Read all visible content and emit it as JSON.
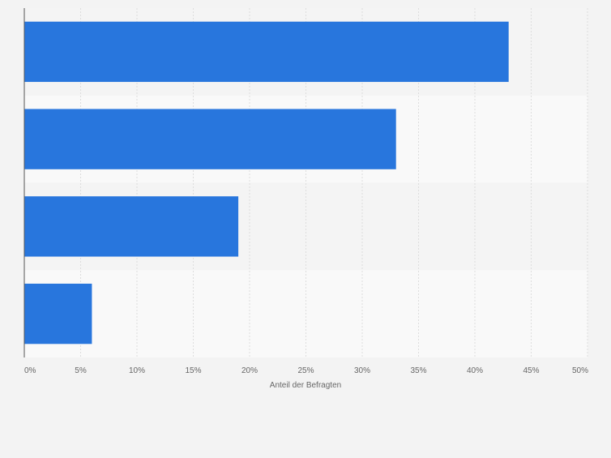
{
  "chart_data": {
    "type": "bar",
    "orientation": "horizontal",
    "categories": [
      "",
      "",
      "",
      ""
    ],
    "values": [
      43,
      33,
      19,
      6
    ],
    "xlabel": "Anteil der Befragten",
    "xlim": [
      0,
      50
    ],
    "x_ticks": [
      "0%",
      "5%",
      "10%",
      "15%",
      "20%",
      "25%",
      "30%",
      "35%",
      "40%",
      "45%",
      "50%"
    ],
    "grid": "vertical",
    "bar_color": "#2876dd",
    "band_colors": [
      "#f4f4f4",
      "#f9f9f9"
    ]
  }
}
